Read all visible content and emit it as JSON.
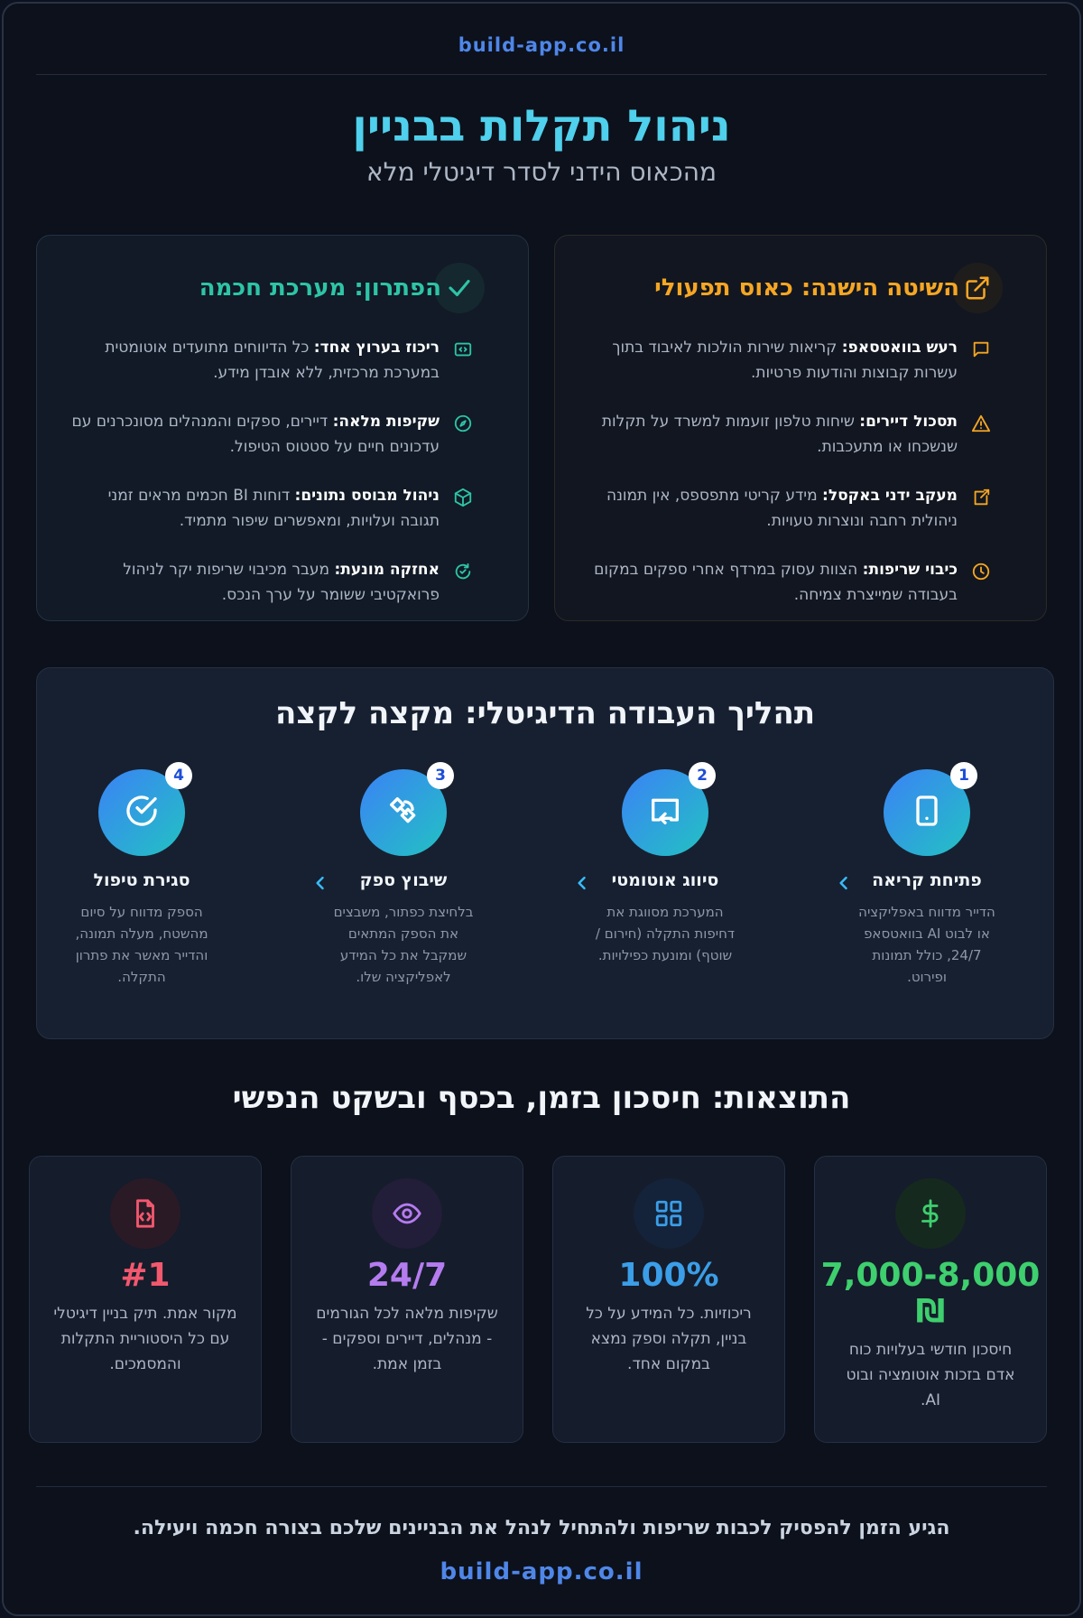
{
  "header": {
    "domain": "build-app.co.il"
  },
  "hero": {
    "title": "ניהול תקלות בבניין",
    "subtitle": "מהכאוס הידני לסדר דיגיטלי מלא"
  },
  "old_way": {
    "title": "השיטה הישנה: כאוס תפעולי",
    "items": [
      {
        "icon": "message-icon",
        "label": "רעש בוואטסאפ:",
        "text": "קריאות שירות הולכות לאיבוד בתוך עשרות קבוצות והודעות פרטיות."
      },
      {
        "icon": "warning-icon",
        "label": "תסכול דיירים:",
        "text": "שיחות טלפון זועמות למשרד על תקלות שנשכחו או מתעכבות."
      },
      {
        "icon": "external-link-icon",
        "label": "מעקב ידני באקסל:",
        "text": "מידע קריטי מתפספס, אין תמונה ניהולית רחבה ונוצרות טעויות."
      },
      {
        "icon": "clock-icon",
        "label": "כיבוי שריפות:",
        "text": "הצוות עסוק במרדף אחרי ספקים במקום בעבודה שמייצרת צמיחה."
      }
    ]
  },
  "new_way": {
    "title": "הפתרון: מערכת חכמה",
    "items": [
      {
        "icon": "code-icon",
        "label": "ריכוז בערוץ אחד:",
        "text": "כל הדיווחים מתועדים אוטומטית במערכת מרכזית, ללא אובדן מידע."
      },
      {
        "icon": "compass-icon",
        "label": "שקיפות מלאה:",
        "text": "דיירים, ספקים והמנהלים מסונכרנים עם עדכונים חיים על סטטוס הטיפול."
      },
      {
        "icon": "cube-icon",
        "label": "ניהול מבוסס נתונים:",
        "text": "דוחות BI חכמים מראים זמני תגובה ועלויות, ומאפשרים שיפור מתמיד."
      },
      {
        "icon": "refresh-check-icon",
        "label": "אחזקה מונעת:",
        "text": "מעבר מכיבוי שריפות יקר לניהול פרואקטיבי ששומר על ערך הנכס."
      }
    ]
  },
  "process": {
    "title": "תהליך העבודה הדיגיטלי: מקצה לקצה",
    "steps": [
      {
        "num": "1",
        "icon": "tablet-icon",
        "title": "פתיחת קריאה",
        "desc": "הדייר מדווח באפליקציה או לבוט AI בוואטסאפ 24/7, כולל תמונות ופירוט."
      },
      {
        "num": "2",
        "icon": "cast-icon",
        "title": "סיווג אוטומטי",
        "desc": "המערכת מסווגת את דחיפות התקלה (חירום / שוטף) ומונעת כפילויות."
      },
      {
        "num": "3",
        "icon": "satellite-icon",
        "title": "שיבוץ ספק",
        "desc": "בלחיצת כפתור, משבצים את הספק המתאים שמקבל את כל המידע לאפליקציה שלו."
      },
      {
        "num": "4",
        "icon": "check-circle-icon",
        "title": "סגירת טיפול",
        "desc": "הספק מדווח על סיום מהשטח, מעלה תמונה, והדייר מאשר את פתרון התקלה."
      }
    ]
  },
  "results": {
    "title": "התוצאות: חיסכון בזמן, בכסף ובשקט הנפשי",
    "cards": [
      {
        "icon": "dollar-icon",
        "value": "7,000-8,000 ₪",
        "desc": "חיסכון חודשי בעלויות כוח אדם בזכות אוטומציה ובוט AI.",
        "color": "#3ecf6e"
      },
      {
        "icon": "grid-icon",
        "value": "100%",
        "desc": "ריכוזיות. כל המידע על כל בניין, תקלה וספק נמצא במקום אחד.",
        "color": "#3b9ee8"
      },
      {
        "icon": "eye-icon",
        "value": "24/7",
        "desc": "שקיפות מלאה לכל הגורמים - מנהלים, דיירים וספקים - בזמן אמת.",
        "color": "#b57cf0"
      },
      {
        "icon": "file-code-icon",
        "value": "#1",
        "desc": "מקור אמת. תיק בניין דיגיטלי עם כל היסטוריית התקלות והמסמכים.",
        "color": "#f2586e"
      }
    ]
  },
  "footer": {
    "cta": "הגיע הזמן להפסיק לכבות שריפות ולהתחיל לנהל את הבניינים שלכם בצורה חכמה ויעילה.",
    "domain": "build-app.co.il"
  }
}
